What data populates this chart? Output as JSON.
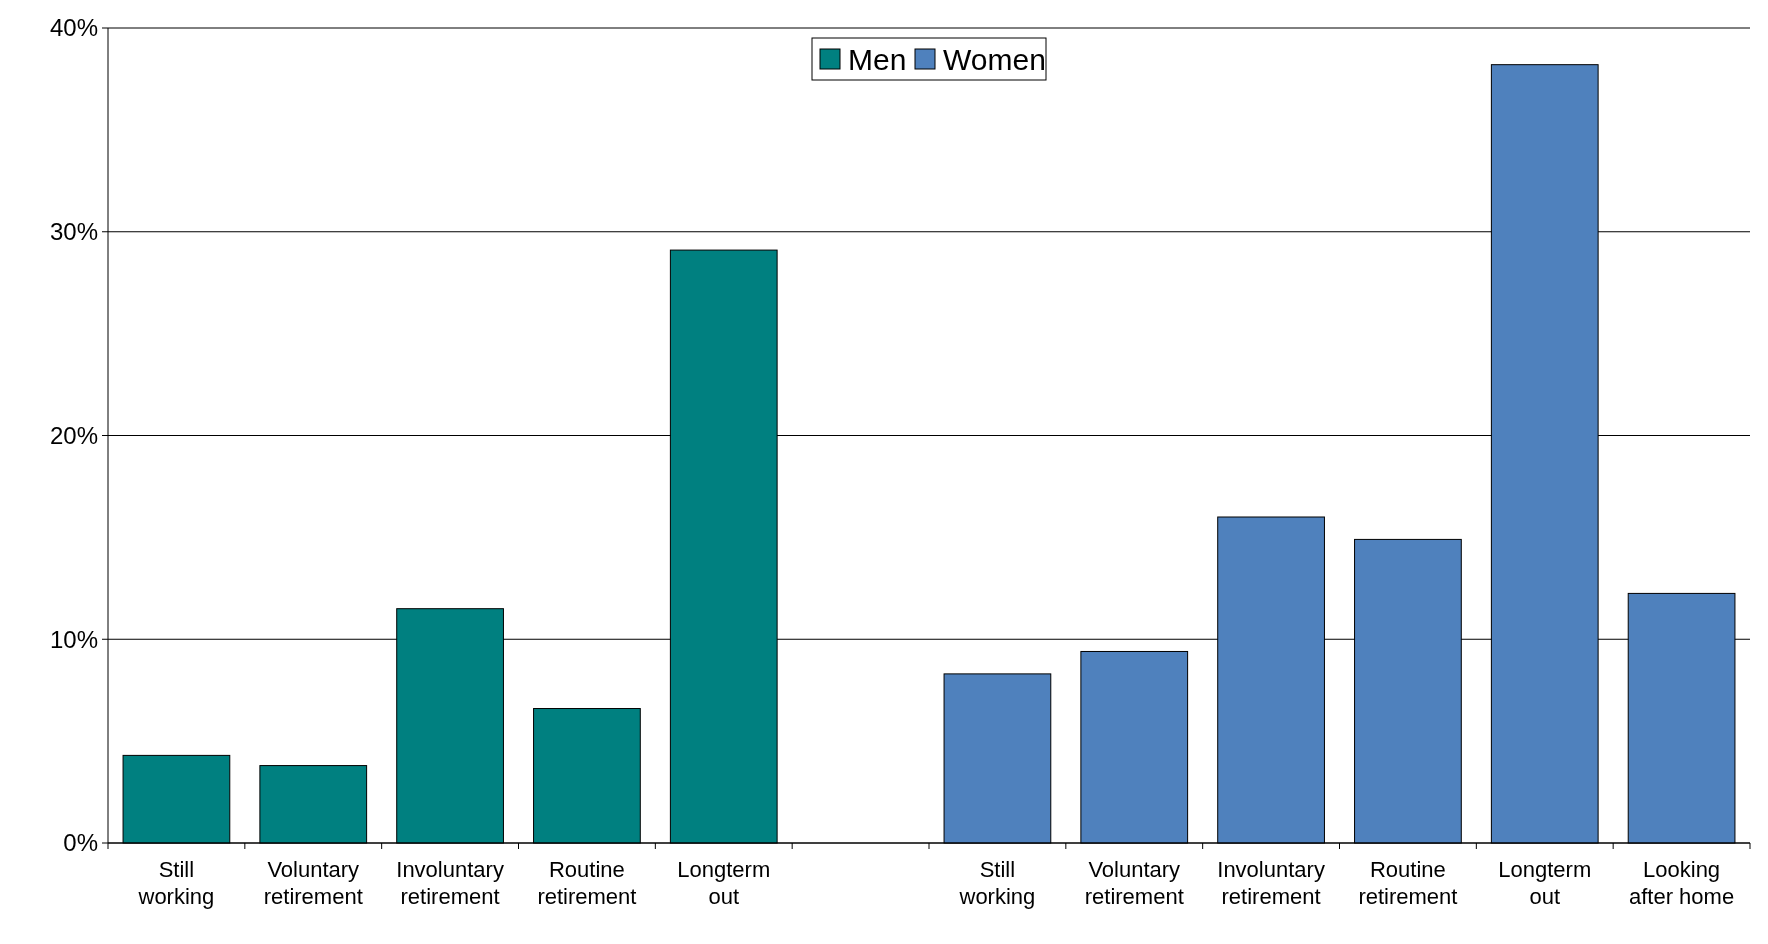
{
  "chart_data": {
    "type": "bar",
    "categories": [
      "Still working",
      "Voluntary retirement",
      "Involuntary retirement",
      "Routine retirement",
      "Longterm out",
      null,
      "Still working",
      "Voluntary retirement",
      "Involuntary retirement",
      "Routine retirement",
      "Longterm out",
      "Looking after home"
    ],
    "series": [
      {
        "name": "Men",
        "color": "#008080",
        "values": [
          4.3,
          3.8,
          11.5,
          6.6,
          29.1,
          null,
          null,
          null,
          null,
          null,
          null,
          null
        ]
      },
      {
        "name": "Women",
        "color": "#4f81bd",
        "values": [
          null,
          null,
          null,
          null,
          null,
          null,
          8.3,
          9.4,
          16.0,
          14.9,
          38.2,
          12.25
        ]
      }
    ],
    "ylim": [
      0,
      40
    ],
    "yticks": [
      {
        "value": 0,
        "label": "0%"
      },
      {
        "value": 10,
        "label": "10%"
      },
      {
        "value": 20,
        "label": "20%"
      },
      {
        "value": 30,
        "label": "30%"
      },
      {
        "value": 40,
        "label": "40%"
      }
    ],
    "grid": "y",
    "legend": "top"
  }
}
